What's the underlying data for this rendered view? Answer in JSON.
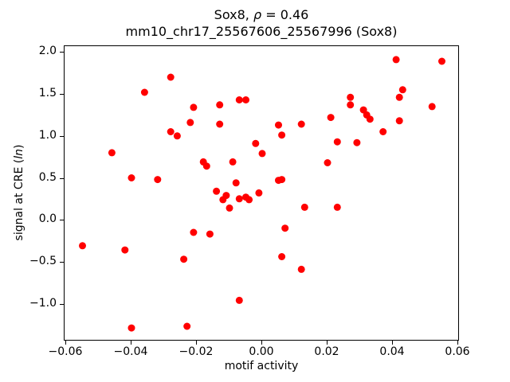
{
  "chart_data": {
    "type": "scatter",
    "title": "Sox8, ρ = 0.46",
    "subtitle": "mm10_chr17_25567606_25567996 (Sox8)",
    "title_parts": {
      "prefix": "Sox8, ",
      "rho": "ρ",
      "suffix": " = 0.46"
    },
    "xlabel": "motif activity",
    "ylabel_parts": {
      "prefix": "signal at CRE (",
      "italic": "ln",
      "suffix": ")"
    },
    "xlim": [
      -0.0605,
      0.0605
    ],
    "ylim": [
      -1.44,
      2.08
    ],
    "grid": false,
    "legend": "none",
    "marker_color": "#ff0000",
    "xticks": {
      "values": [
        -0.06,
        -0.04,
        -0.02,
        0.0,
        0.02,
        0.04,
        0.06
      ],
      "labels": [
        "−0.06",
        "−0.04",
        "−0.02",
        "0.00",
        "0.02",
        "0.04",
        "0.06"
      ]
    },
    "yticks": {
      "values": [
        -1.0,
        -0.5,
        0.0,
        0.5,
        1.0,
        1.5,
        2.0
      ],
      "labels": [
        "−1.0",
        "−0.5",
        "0.0",
        "0.5",
        "1.0",
        "1.5",
        "2.0"
      ]
    },
    "points": [
      [
        -0.055,
        -0.3
      ],
      [
        -0.046,
        0.81
      ],
      [
        -0.042,
        -0.35
      ],
      [
        -0.04,
        0.51
      ],
      [
        -0.04,
        -1.28
      ],
      [
        -0.036,
        1.53
      ],
      [
        -0.032,
        0.49
      ],
      [
        -0.028,
        1.71
      ],
      [
        -0.028,
        1.06
      ],
      [
        -0.026,
        1.01
      ],
      [
        -0.024,
        -0.46
      ],
      [
        -0.023,
        -1.26
      ],
      [
        -0.022,
        1.17
      ],
      [
        -0.021,
        1.35
      ],
      [
        -0.021,
        -0.14
      ],
      [
        -0.018,
        0.7
      ],
      [
        -0.017,
        0.65
      ],
      [
        -0.016,
        -0.16
      ],
      [
        -0.013,
        1.38
      ],
      [
        -0.013,
        1.15
      ],
      [
        -0.014,
        0.35
      ],
      [
        -0.012,
        0.25
      ],
      [
        -0.011,
        0.3
      ],
      [
        -0.01,
        0.15
      ],
      [
        -0.009,
        0.7
      ],
      [
        -0.008,
        0.45
      ],
      [
        -0.007,
        1.44
      ],
      [
        -0.005,
        1.44
      ],
      [
        -0.007,
        0.26
      ],
      [
        -0.005,
        0.28
      ],
      [
        -0.004,
        0.25
      ],
      [
        -0.007,
        -0.95
      ],
      [
        -0.002,
        0.92
      ],
      [
        -0.001,
        0.33
      ],
      [
        0.0,
        0.8
      ],
      [
        0.005,
        1.14
      ],
      [
        0.006,
        1.02
      ],
      [
        0.005,
        0.48
      ],
      [
        0.006,
        0.49
      ],
      [
        0.006,
        -0.43
      ],
      [
        0.007,
        -0.09
      ],
      [
        0.012,
        1.15
      ],
      [
        0.012,
        -0.58
      ],
      [
        0.013,
        0.16
      ],
      [
        0.02,
        0.69
      ],
      [
        0.021,
        1.23
      ],
      [
        0.023,
        0.94
      ],
      [
        0.023,
        0.16
      ],
      [
        0.027,
        1.47
      ],
      [
        0.027,
        1.38
      ],
      [
        0.029,
        0.93
      ],
      [
        0.031,
        1.32
      ],
      [
        0.032,
        1.26
      ],
      [
        0.033,
        1.21
      ],
      [
        0.037,
        1.06
      ],
      [
        0.041,
        1.92
      ],
      [
        0.042,
        1.47
      ],
      [
        0.043,
        1.56
      ],
      [
        0.042,
        1.19
      ],
      [
        0.052,
        1.36
      ],
      [
        0.055,
        1.9
      ]
    ]
  }
}
